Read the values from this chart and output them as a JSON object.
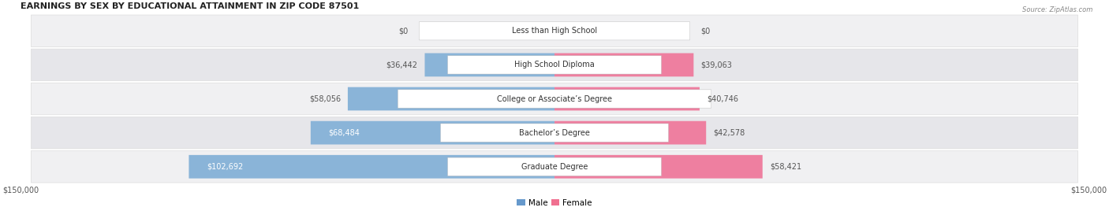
{
  "title": "EARNINGS BY SEX BY EDUCATIONAL ATTAINMENT IN ZIP CODE 87501",
  "source": "Source: ZipAtlas.com",
  "categories": [
    "Less than High School",
    "High School Diploma",
    "College or Associate’s Degree",
    "Bachelor’s Degree",
    "Graduate Degree"
  ],
  "male_values": [
    0,
    36442,
    58056,
    68484,
    102692
  ],
  "female_values": [
    0,
    39063,
    40746,
    42578,
    58421
  ],
  "male_color": "#8ab4d8",
  "female_color": "#ee7fa0",
  "male_color_light": "#aac8e8",
  "female_color_light": "#f4a0b8",
  "male_legend_color": "#6699cc",
  "female_legend_color": "#f07090",
  "row_bg_odd": "#f2f2f2",
  "row_bg_even": "#e8e8e8",
  "max_value": 150000,
  "xlabel_left": "$150,000",
  "xlabel_right": "$150,000",
  "figsize": [
    14.06,
    2.68
  ],
  "dpi": 100
}
